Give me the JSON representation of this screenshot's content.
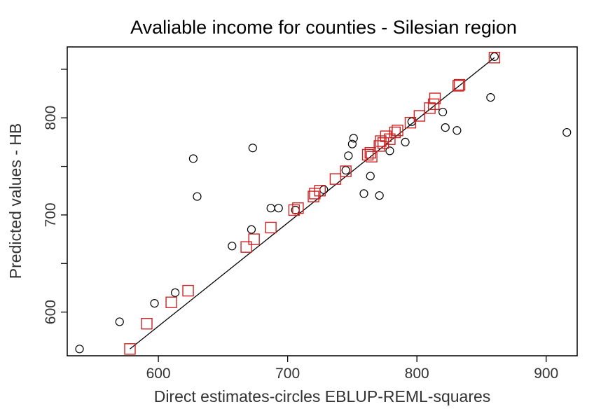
{
  "chart_data": {
    "type": "scatter",
    "title": "Avaliable income for counties - Silesian region",
    "xlabel": "Direct estimates-circles EBLUP-REML-squares",
    "ylabel": "Predicted values - HB",
    "xlim": [
      529.5,
      924
    ],
    "ylim": [
      555,
      873
    ],
    "x_ticks": [
      600,
      700,
      800,
      900
    ],
    "x_tick_labels": [
      "600",
      "700",
      "800",
      "900"
    ],
    "y_ticks": [
      600,
      650,
      700,
      750,
      800,
      850
    ],
    "y_tick_labels": [
      "600",
      "",
      "700",
      "",
      "800",
      ""
    ],
    "grid": false,
    "legend": "none",
    "series": [
      {
        "marker": "circle",
        "color": "#000000",
        "points": [
          [
            539,
            562
          ],
          [
            570,
            590
          ],
          [
            597,
            609
          ],
          [
            613,
            620
          ],
          [
            627,
            758
          ],
          [
            630,
            719
          ],
          [
            657,
            668
          ],
          [
            672,
            685
          ],
          [
            673,
            769
          ],
          [
            687,
            707
          ],
          [
            693,
            707
          ],
          [
            706,
            705
          ],
          [
            728,
            726
          ],
          [
            745,
            746
          ],
          [
            747,
            761
          ],
          [
            750,
            773
          ],
          [
            751,
            779
          ],
          [
            759,
            722
          ],
          [
            764,
            740
          ],
          [
            771,
            720
          ],
          [
            779,
            766
          ],
          [
            791,
            775
          ],
          [
            796,
            796
          ],
          [
            820,
            806
          ],
          [
            822,
            790
          ],
          [
            831,
            787
          ],
          [
            857,
            821
          ],
          [
            916,
            785
          ],
          [
            860,
            863
          ]
        ]
      },
      {
        "marker": "square",
        "color": "#cc2222",
        "points": [
          [
            578,
            562
          ],
          [
            591,
            588
          ],
          [
            610,
            610
          ],
          [
            623,
            622
          ],
          [
            668,
            667
          ],
          [
            674,
            675
          ],
          [
            687,
            687
          ],
          [
            705,
            705
          ],
          [
            708,
            707
          ],
          [
            720,
            719
          ],
          [
            721,
            722
          ],
          [
            725,
            725
          ],
          [
            737,
            737
          ],
          [
            745,
            745
          ],
          [
            762,
            762
          ],
          [
            764,
            764
          ],
          [
            765,
            760
          ],
          [
            771,
            771
          ],
          [
            772,
            776
          ],
          [
            774,
            774
          ],
          [
            776,
            781
          ],
          [
            779,
            778
          ],
          [
            783,
            785
          ],
          [
            785,
            787
          ],
          [
            795,
            795
          ],
          [
            802,
            802
          ],
          [
            810,
            810
          ],
          [
            813,
            814
          ],
          [
            814,
            820
          ],
          [
            832,
            833
          ],
          [
            833,
            834
          ],
          [
            860,
            862
          ]
        ]
      }
    ],
    "fit_line": {
      "x": [
        578,
        860
      ],
      "y": [
        562,
        862
      ],
      "color": "#000000"
    }
  }
}
